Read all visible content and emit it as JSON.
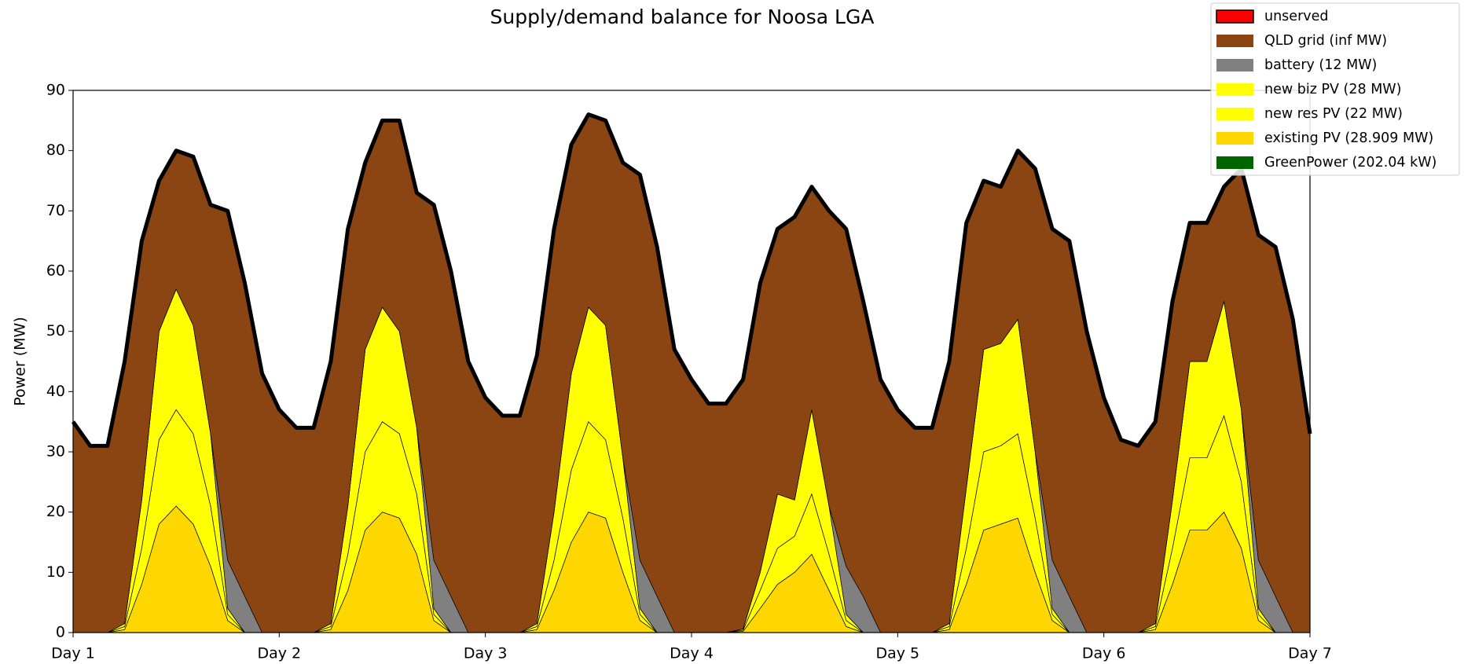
{
  "chart_data": {
    "type": "stacked_area",
    "title": "Supply/demand balance for Noosa LGA",
    "ylabel": "Power (MW)",
    "x": [
      1,
      1.083,
      1.167,
      1.25,
      1.333,
      1.417,
      1.5,
      1.583,
      1.667,
      1.75,
      1.833,
      1.917,
      2,
      2.083,
      2.167,
      2.25,
      2.333,
      2.417,
      2.5,
      2.583,
      2.667,
      2.75,
      2.833,
      2.917,
      3,
      3.083,
      3.167,
      3.25,
      3.333,
      3.417,
      3.5,
      3.583,
      3.667,
      3.75,
      3.833,
      3.917,
      4,
      4.083,
      4.167,
      4.25,
      4.333,
      4.417,
      4.5,
      4.583,
      4.667,
      4.75,
      4.833,
      4.917,
      5,
      5.083,
      5.167,
      5.25,
      5.333,
      5.417,
      5.5,
      5.583,
      5.667,
      5.75,
      5.833,
      5.917,
      6,
      6.083,
      6.167,
      6.25,
      6.333,
      6.417,
      6.5,
      6.583,
      6.667,
      6.75,
      6.833,
      6.917,
      7
    ],
    "series": [
      {
        "name": "GreenPower (202.04 kW)",
        "color": "#006400",
        "values": [
          0,
          0,
          0,
          0,
          0,
          0,
          0,
          0,
          0,
          0,
          0,
          0,
          0,
          0,
          0,
          0,
          0,
          0,
          0,
          0,
          0,
          0,
          0,
          0,
          0,
          0,
          0,
          0,
          0,
          0,
          0,
          0,
          0,
          0,
          0,
          0,
          0,
          0,
          0,
          0,
          0,
          0,
          0,
          0,
          0,
          0,
          0,
          0,
          0,
          0,
          0,
          0,
          0,
          0,
          0,
          0,
          0,
          0,
          0,
          0,
          0,
          0,
          0,
          0,
          0,
          0,
          0,
          0,
          0,
          0,
          0,
          0,
          0
        ]
      },
      {
        "name": "existing PV (28.909 MW)",
        "color": "#ffd700",
        "values": [
          0,
          0,
          0,
          0.5,
          8,
          18,
          21,
          18,
          11,
          2,
          0,
          0,
          0,
          0,
          0,
          0.5,
          7,
          17,
          20,
          19,
          13,
          2,
          0,
          0,
          0,
          0,
          0,
          0.5,
          7,
          15,
          20,
          19,
          10,
          2,
          0,
          0,
          0,
          0,
          0,
          0.2,
          4,
          8,
          10,
          13,
          7,
          1,
          0,
          0,
          0,
          0,
          0,
          0.5,
          8,
          17,
          18,
          19,
          10,
          2,
          0,
          0,
          0,
          0,
          0,
          0.5,
          8,
          17,
          17,
          20,
          14,
          2,
          0,
          0,
          0
        ]
      },
      {
        "name": "new res PV (22 MW)",
        "color": "#ffff00",
        "values": [
          0,
          0,
          0,
          0.5,
          6,
          14,
          16,
          15,
          10,
          1,
          0,
          0,
          0,
          0,
          0,
          0.5,
          6,
          13,
          15,
          14,
          10,
          1,
          0,
          0,
          0,
          0,
          0,
          0.5,
          5,
          12,
          15,
          13,
          9,
          1,
          0,
          0,
          0,
          0,
          0,
          0.2,
          3,
          6,
          6,
          10,
          6,
          1,
          0,
          0,
          0,
          0,
          0,
          0.5,
          6,
          13,
          13,
          14,
          9,
          1,
          0,
          0,
          0,
          0,
          0,
          0.5,
          6,
          12,
          12,
          16,
          11,
          1,
          0,
          0,
          0
        ]
      },
      {
        "name": "new biz PV (28 MW)",
        "color": "#ffff00",
        "values": [
          0,
          0,
          0,
          0.5,
          8,
          18,
          20,
          18,
          12,
          1,
          0,
          0,
          0,
          0,
          0,
          0.5,
          8,
          17,
          19,
          17,
          11,
          1,
          0,
          0,
          0,
          0,
          0,
          0.5,
          8,
          16,
          19,
          19,
          10,
          1,
          0,
          0,
          0,
          0,
          0,
          0.2,
          3,
          9,
          6,
          14,
          8,
          1,
          0,
          0,
          0,
          0,
          0,
          0.5,
          10,
          17,
          17,
          19,
          11,
          1,
          0,
          0,
          0,
          0,
          0,
          0.5,
          8,
          16,
          16,
          19,
          12,
          1,
          0,
          0,
          0
        ]
      },
      {
        "name": "battery (12 MW)",
        "color": "#808080",
        "values": [
          0,
          0,
          0,
          0,
          0,
          0,
          0,
          0,
          0,
          8,
          6,
          0,
          0,
          0,
          0,
          0,
          0,
          0,
          0,
          0,
          0,
          8,
          6,
          0,
          0,
          0,
          0,
          0,
          0,
          0,
          0,
          0,
          0,
          8,
          6,
          0,
          0,
          0,
          0,
          0,
          0,
          0,
          0,
          0,
          0,
          8,
          6,
          0,
          0,
          0,
          0,
          0,
          0,
          0,
          0,
          0,
          0,
          8,
          6,
          0,
          0,
          0,
          0,
          0,
          0,
          0,
          0,
          0,
          0,
          8,
          6,
          0,
          0
        ]
      },
      {
        "name": "QLD grid (inf MW)",
        "color": "#8b4513",
        "values": [
          35,
          31,
          31,
          43.5,
          43,
          25,
          23,
          28,
          38,
          58,
          52,
          43,
          37,
          34,
          34,
          43.5,
          46,
          31,
          31,
          35,
          39,
          59,
          54,
          45,
          39,
          36,
          36,
          44.5,
          47,
          38,
          32,
          34,
          49,
          64,
          58,
          47,
          42,
          38,
          38,
          41.4,
          48,
          44,
          47,
          37,
          49,
          56,
          49,
          42,
          37,
          34,
          34,
          43.5,
          44,
          28,
          26,
          28,
          47,
          55,
          59,
          50,
          39,
          32,
          31,
          33.5,
          33,
          23,
          23,
          19,
          40,
          54,
          58,
          52,
          33
        ]
      },
      {
        "name": "unserved",
        "color": "#ff0000",
        "values": [
          0,
          0,
          0,
          0,
          0,
          0,
          0,
          0,
          0,
          0,
          0,
          0,
          0,
          0,
          0,
          0,
          0,
          0,
          0,
          0,
          0,
          0,
          0,
          0,
          0,
          0,
          0,
          0,
          0,
          0,
          0,
          0,
          0,
          0,
          0,
          0,
          0,
          0,
          0,
          0,
          0,
          0,
          0,
          0,
          0,
          0,
          0,
          0,
          0,
          0,
          0,
          0,
          0,
          0,
          0,
          0,
          0,
          0,
          0,
          0,
          0,
          0,
          0,
          0,
          0,
          0,
          0,
          0,
          0,
          0,
          0,
          0,
          0
        ]
      }
    ],
    "xlim": [
      1,
      7
    ],
    "xticks": [
      {
        "value": 1,
        "label": "Day 1"
      },
      {
        "value": 2,
        "label": "Day 2"
      },
      {
        "value": 3,
        "label": "Day 3"
      },
      {
        "value": 4,
        "label": "Day 4"
      },
      {
        "value": 5,
        "label": "Day 5"
      },
      {
        "value": 6,
        "label": "Day 6"
      },
      {
        "value": 7,
        "label": "Day 7"
      }
    ],
    "ylim": [
      0,
      90
    ],
    "yticks": [
      0,
      10,
      20,
      30,
      40,
      50,
      60,
      70,
      80,
      90
    ],
    "legend": "upper right"
  }
}
